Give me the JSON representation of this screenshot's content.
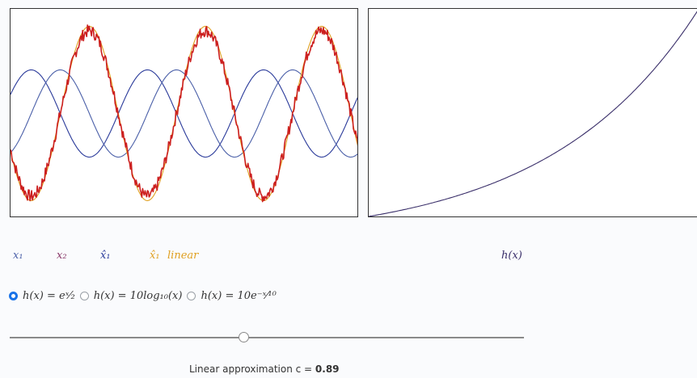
{
  "legend": {
    "x1": "x₁",
    "x2": "x₂",
    "x3": "x̂₁",
    "x4": "x̂₁",
    "x4_suffix": "linear",
    "h": "h(x)"
  },
  "options": [
    {
      "label": "h(x) = eˣ⁄₂",
      "selected": true
    },
    {
      "label": "h(x) = 10log₁₀(x)",
      "selected": false
    },
    {
      "label": "h(x) = 10e⁻ˣ⁄¹⁰",
      "selected": false
    }
  ],
  "slider": {
    "label": "Linear approximation c = ",
    "value": "0.89",
    "fraction": 0.455
  },
  "colors": {
    "x1": "#4a5fa8",
    "x2": "#8a3a6a",
    "x3": "#2a3a9a",
    "x4": "#e0a020",
    "noisy": "#cc1f1f",
    "h": "#3a2f6a",
    "accent": "#1a73e8"
  },
  "chart_data": [
    {
      "type": "line",
      "series": [
        {
          "color": "#2a3a9a",
          "amplitude": 0.5,
          "phase": 0.0,
          "periods": 3
        },
        {
          "color": "#4a5fa8",
          "amplitude": 0.5,
          "phase": 0.25,
          "periods": 3
        },
        {
          "color": "#e0a020",
          "amplitude": 1.0,
          "phase": 0.5,
          "periods": 3
        },
        {
          "color": "#cc1f1f",
          "amplitude": 0.95,
          "phase": 0.5,
          "periods": 3,
          "noisy": true
        }
      ],
      "ylim": [
        -1.2,
        1.2
      ]
    },
    {
      "type": "line",
      "series": [
        {
          "color": "#3a2f6a",
          "function": "exp"
        }
      ],
      "xlim": [
        0,
        1
      ],
      "ylim": [
        0,
        1
      ]
    }
  ]
}
